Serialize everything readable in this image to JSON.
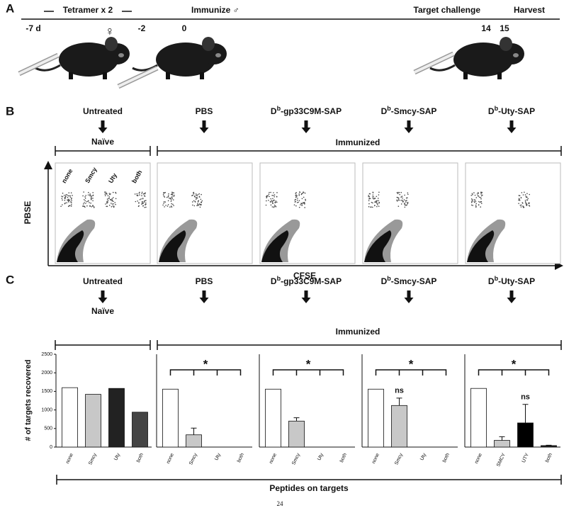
{
  "panel_a": {
    "label": "A",
    "days": [
      "-7 d",
      "-2",
      "0",
      "14",
      "15"
    ],
    "tetramer": "Tetramer x 2",
    "immunize": "Immunize ♂",
    "challenge": "Target challenge",
    "harvest": "Harvest",
    "female": "♀"
  },
  "groups": [
    {
      "text": "Untreated"
    },
    {
      "text": "PBS"
    },
    {
      "prefix": "D",
      "superscript": "b",
      "suffix": "-gp33C9M-SAP"
    },
    {
      "prefix": "D",
      "superscript": "b",
      "suffix": "-Smcy-SAP"
    },
    {
      "prefix": "D",
      "superscript": "b",
      "suffix": "-Uty-SAP"
    }
  ],
  "panel_b": {
    "label": "B",
    "naive": "Naïve",
    "immunized": "Immunized",
    "plot_labels": [
      "none",
      "Smcy",
      "Uty",
      "both"
    ],
    "ylabel": "PBSE",
    "xlabel": "CFSE"
  },
  "panel_c": {
    "label": "C",
    "naive": "Naïve",
    "immunized": "Immunized",
    "xlabel": "Peptides on targets"
  },
  "chart_data": [
    {
      "type": "bar",
      "categories": [
        "none",
        "Smcy",
        "Uty",
        "both"
      ],
      "values": [
        1600,
        1420,
        1580,
        940
      ],
      "errors": [
        null,
        null,
        null,
        null
      ],
      "colors": [
        "#ffffff",
        "#c8c8c8",
        "#222222",
        "#444444"
      ],
      "ylim": [
        0,
        2500
      ],
      "yticks": [
        0,
        500,
        1000,
        1500,
        2000,
        2500
      ],
      "ylabel": "# of targets recovered"
    },
    {
      "type": "bar",
      "categories": [
        "none",
        "Smcy",
        "Uty",
        "both"
      ],
      "values": [
        1560,
        330,
        0,
        0
      ],
      "errors": [
        null,
        180,
        null,
        null
      ],
      "colors": [
        "#ffffff",
        "#c8c8c8",
        "#222222",
        "#222222"
      ],
      "ylim": [
        0,
        2500
      ],
      "significance": "*"
    },
    {
      "type": "bar",
      "categories": [
        "none",
        "Smcy",
        "Uty",
        "both"
      ],
      "values": [
        1560,
        700,
        0,
        0
      ],
      "errors": [
        null,
        90,
        null,
        null
      ],
      "colors": [
        "#ffffff",
        "#c8c8c8",
        "#222222",
        "#222222"
      ],
      "ylim": [
        0,
        2500
      ],
      "significance": "*"
    },
    {
      "type": "bar",
      "categories": [
        "none",
        "Smcy",
        "Uty",
        "both"
      ],
      "values": [
        1560,
        1120,
        0,
        0
      ],
      "errors": [
        null,
        200,
        null,
        null
      ],
      "colors": [
        "#ffffff",
        "#c8c8c8",
        "#222222",
        "#222222"
      ],
      "ylim": [
        0,
        2500
      ],
      "significance": "*",
      "value_annotations": [
        null,
        "ns",
        null,
        null
      ]
    },
    {
      "type": "bar",
      "categories": [
        "none",
        "SMCY",
        "UTY",
        "both"
      ],
      "values": [
        1580,
        180,
        650,
        40
      ],
      "errors": [
        null,
        100,
        500,
        10
      ],
      "colors": [
        "#ffffff",
        "#c8c8c8",
        "#000000",
        "#222222"
      ],
      "ylim": [
        0,
        2500
      ],
      "significance": "*",
      "value_annotations": [
        null,
        null,
        "ns",
        null
      ]
    }
  ],
  "footer": {
    "page_number": "24"
  }
}
